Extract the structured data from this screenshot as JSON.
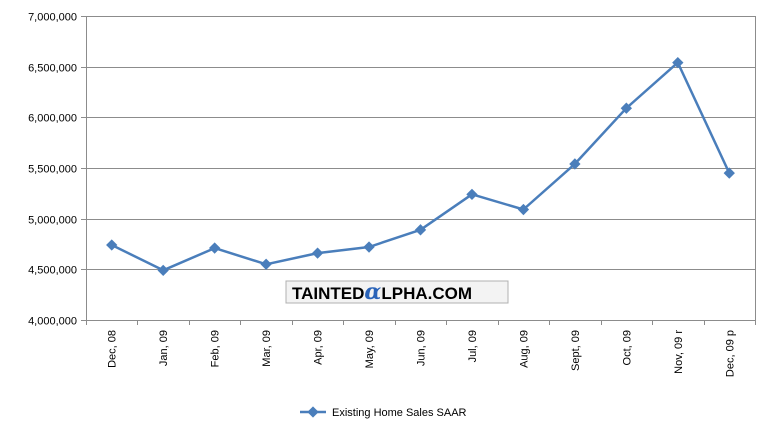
{
  "chart_data": {
    "type": "line",
    "categories": [
      "Dec, 08",
      "Jan, 09",
      "Feb, 09",
      "Mar, 09",
      "Apr, 09",
      "May, 09",
      "Jun, 09",
      "Jul, 09",
      "Aug, 09",
      "Sept, 09",
      "Oct, 09",
      "Nov, 09 r",
      "Dec, 09 p"
    ],
    "series": [
      {
        "name": "Existing Home Sales SAAR",
        "color": "#4a7ebb",
        "marker": "diamond",
        "values": [
          4740000,
          4490000,
          4710000,
          4550000,
          4660000,
          4720000,
          4890000,
          5240000,
          5090000,
          5540000,
          6090000,
          6540000,
          5450000
        ]
      }
    ],
    "ylim": [
      4000000,
      7000000
    ],
    "yticks": [
      4000000,
      4500000,
      5000000,
      5500000,
      6000000,
      6500000,
      7000000
    ],
    "ytick_labels": [
      "4,000,000",
      "4,500,000",
      "5,000,000",
      "5,500,000",
      "6,000,000",
      "6,500,000",
      "7,000,000"
    ],
    "grid": true,
    "legend": "bottom"
  },
  "watermark": {
    "before": "TAINTED",
    "alpha": "α",
    "after": "LPHA.COM"
  }
}
